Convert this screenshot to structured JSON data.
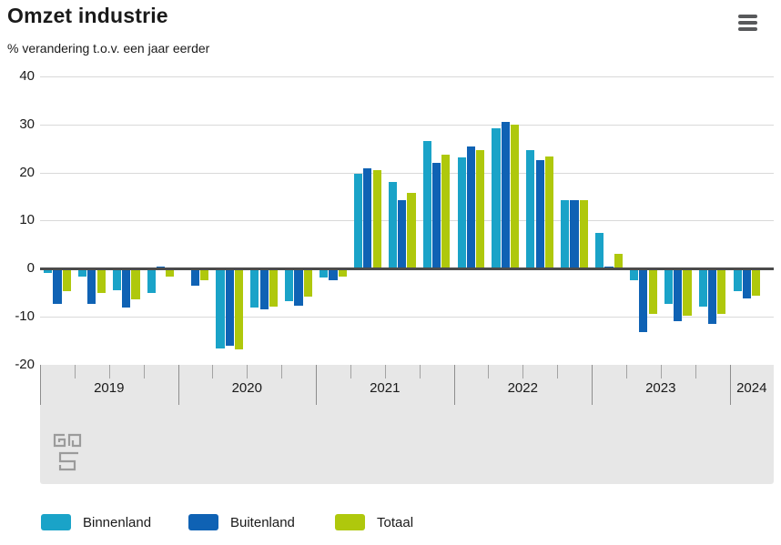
{
  "header": {
    "title": "Omzet industrie",
    "subtitle": "% verandering t.o.v. een jaar eerder"
  },
  "legend": {
    "items": [
      {
        "label": "Binnenland",
        "color": "#1aa3c8"
      },
      {
        "label": "Buitenland",
        "color": "#0f62b4"
      },
      {
        "label": "Totaal",
        "color": "#afc80c"
      }
    ]
  },
  "chart_data": {
    "type": "bar",
    "title": "Omzet industrie",
    "subtitle": "% verandering t.o.v. een jaar eerder",
    "unit": "%",
    "ylim": [
      -20,
      40
    ],
    "yticks": [
      40,
      30,
      20,
      10,
      0,
      -10,
      -20
    ],
    "grid": true,
    "legend_position": "bottom",
    "x_years": [
      {
        "label": "2019",
        "quarters": 4
      },
      {
        "label": "2020",
        "quarters": 4
      },
      {
        "label": "2021",
        "quarters": 4
      },
      {
        "label": "2022",
        "quarters": 4
      },
      {
        "label": "2023",
        "quarters": 4
      },
      {
        "label": "2024",
        "quarters": 1
      }
    ],
    "periods": [
      "2019 Q1",
      "2019 Q2",
      "2019 Q3",
      "2019 Q4",
      "2020 Q1",
      "2020 Q2",
      "2020 Q3",
      "2020 Q4",
      "2021 Q1",
      "2021 Q2",
      "2021 Q3",
      "2021 Q4",
      "2022 Q1",
      "2022 Q2",
      "2022 Q3",
      "2022 Q4",
      "2023 Q1",
      "2023 Q2",
      "2023 Q3",
      "2023 Q4",
      "2024 Q1"
    ],
    "series": [
      {
        "name": "Binnenland",
        "color": "#1aa3c8",
        "values": [
          -0.7,
          -1.4,
          -4.2,
          -4.8,
          0.1,
          -16.4,
          -7.9,
          -6.5,
          -1.6,
          19.7,
          18.0,
          26.6,
          23.2,
          29.2,
          24.6,
          14.2,
          7.5,
          -2.2,
          -7.1,
          -7.6,
          -4.5
        ]
      },
      {
        "name": "Buitenland",
        "color": "#0f62b4",
        "values": [
          -7.0,
          -7.1,
          -7.8,
          0.5,
          -3.2,
          -15.8,
          -8.2,
          -7.4,
          -2.1,
          20.9,
          14.2,
          22.1,
          25.4,
          30.6,
          22.5,
          14.3,
          0.5,
          -12.9,
          -10.7,
          -11.2,
          -6.0
        ]
      },
      {
        "name": "Totaal",
        "color": "#afc80c",
        "values": [
          -4.4,
          -4.7,
          -6.2,
          -1.3,
          -2.1,
          -16.6,
          -7.7,
          -5.6,
          -1.3,
          20.4,
          15.7,
          23.8,
          24.6,
          30.0,
          23.4,
          14.3,
          3.0,
          -9.2,
          -9.5,
          -9.2,
          -5.4
        ]
      }
    ]
  }
}
